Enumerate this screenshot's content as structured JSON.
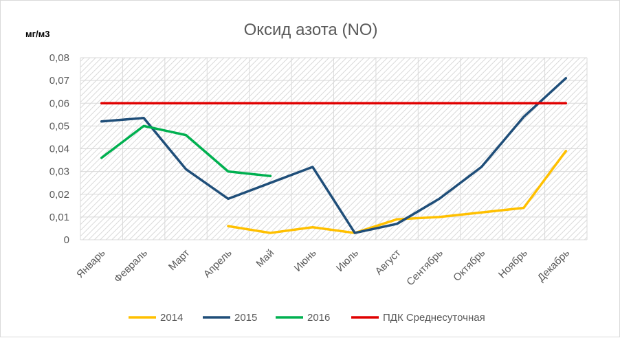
{
  "chart_data": {
    "type": "line",
    "title": "Оксид азота (NO)",
    "ylabel": "мг/м3",
    "xlabel": "",
    "ylim": [
      0,
      0.08
    ],
    "yticks": [
      "0",
      "0,01",
      "0,02",
      "0,03",
      "0,04",
      "0,05",
      "0,06",
      "0,07",
      "0,08"
    ],
    "categories": [
      "Январь",
      "Февраль",
      "Март",
      "Апрель",
      "Май",
      "Июнь",
      "Июль",
      "Август",
      "Сентябрь",
      "Октябрь",
      "Ноябрь",
      "Декабрь"
    ],
    "grid": true,
    "legend_position": "bottom",
    "series": [
      {
        "name": "2014",
        "color": "#ffc000",
        "values": [
          null,
          null,
          null,
          0.006,
          0.003,
          0.0055,
          0.003,
          0.009,
          0.01,
          0.012,
          0.014,
          0.039
        ]
      },
      {
        "name": "2015",
        "color": "#1f4e79",
        "values": [
          0.052,
          0.0535,
          0.031,
          0.018,
          0.025,
          0.032,
          0.003,
          0.007,
          0.018,
          0.032,
          0.054,
          0.071
        ]
      },
      {
        "name": "2016",
        "color": "#00b050",
        "values": [
          0.036,
          0.05,
          0.046,
          0.03,
          0.028,
          null,
          null,
          null,
          null,
          null,
          null,
          null
        ]
      },
      {
        "name": "ПДК Среднесуточная",
        "color": "#e00000",
        "values": [
          0.06,
          0.06,
          0.06,
          0.06,
          0.06,
          0.06,
          0.06,
          0.06,
          0.06,
          0.06,
          0.06,
          0.06
        ]
      }
    ]
  }
}
